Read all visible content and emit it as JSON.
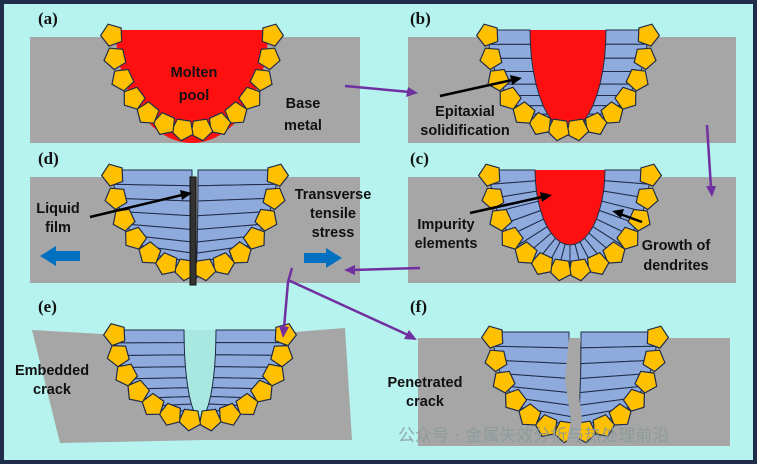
{
  "panels": {
    "a": {
      "label": "(a)",
      "text1": "Molten",
      "text2": "pool",
      "base1": "Base",
      "base2": "metal"
    },
    "b": {
      "label": "(b)",
      "text1": "Epitaxial",
      "text2": "solidification"
    },
    "c": {
      "label": "(c)",
      "imp1": "Impurity",
      "imp2": "elements",
      "grow1": "Growth of",
      "grow2": "dendrites"
    },
    "d": {
      "label": "(d)",
      "film1": "Liquid",
      "film2": "film",
      "stress1": "Transverse",
      "stress2": "tensile",
      "stress3": "stress"
    },
    "e": {
      "label": "(e)",
      "text1": "Embedded",
      "text2": "crack"
    },
    "f": {
      "label": "(f)",
      "text1": "Penetrated",
      "text2": "crack"
    }
  },
  "watermark": "公众号 · 金属失效分析与热处理前沿",
  "colors": {
    "background": "#b6f2ee",
    "border": "#1f2d4a",
    "base_metal": "#a6a6a6",
    "molten": "#ff1010",
    "grain": "#ffc000",
    "dendrite": "#8faadc",
    "flow_arrow": "#7030a0",
    "stress_arrow": "#0070c0",
    "crack": "#a8e8e0"
  }
}
